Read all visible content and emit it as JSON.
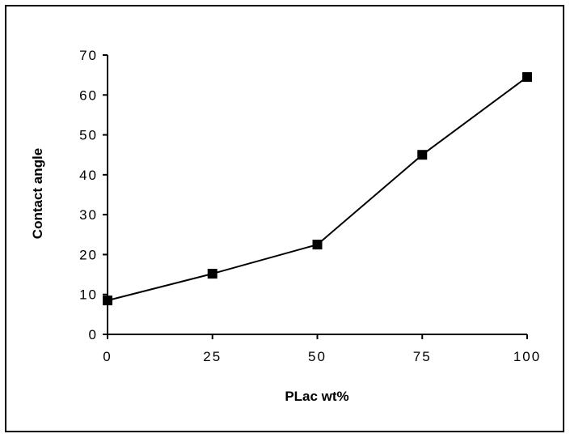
{
  "chart_data": {
    "type": "line",
    "title": "",
    "xlabel": "PLac  wt%",
    "ylabel": "Contact  angle",
    "x": [
      0,
      25,
      50,
      75,
      100
    ],
    "series": [
      {
        "values": [
          8.5,
          15.2,
          22.5,
          45,
          64.5
        ]
      }
    ],
    "xlim": [
      0,
      100
    ],
    "ylim": [
      0,
      70
    ],
    "x_ticks": [
      "0",
      "25",
      "50",
      "75",
      "100"
    ],
    "y_ticks": [
      "0",
      "10",
      "20",
      "30",
      "40",
      "50",
      "60",
      "70"
    ],
    "grid": false,
    "legend": "none",
    "colors": {
      "line": "#000000",
      "marker": "#000000"
    }
  }
}
